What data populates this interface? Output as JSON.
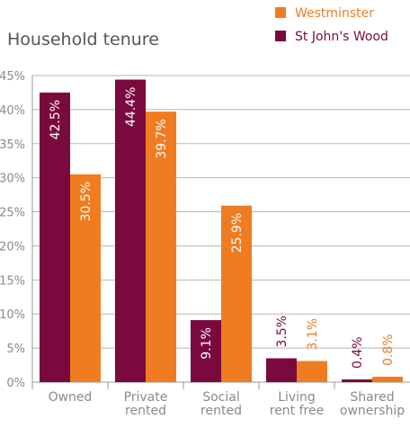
{
  "chart_data": {
    "type": "bar",
    "title": "Household tenure",
    "categories": [
      [
        "Owned"
      ],
      [
        "Private",
        "rented"
      ],
      [
        "Social",
        "rented"
      ],
      [
        "Living",
        "rent free"
      ],
      [
        "Shared",
        "ownership"
      ]
    ],
    "series": [
      {
        "name": "St John's Wood",
        "color": "#7a0a3d",
        "values": [
          42.5,
          44.4,
          9.1,
          3.5,
          0.4
        ]
      },
      {
        "name": "Westminster",
        "color": "#f07c22",
        "values": [
          30.5,
          39.7,
          25.9,
          3.1,
          0.8
        ]
      }
    ],
    "data_labels": [
      [
        "42.5%",
        "44.4%",
        "9.1%",
        "3.5%",
        "0.4%"
      ],
      [
        "30.5%",
        "39.7%",
        "25.9%",
        "3.1%",
        "0.8%"
      ]
    ],
    "yticks": [
      "0%",
      "5%",
      "10%",
      "15%",
      "20%",
      "25%",
      "30%",
      "35%",
      "40%",
      "45%"
    ],
    "ylim": [
      0,
      45
    ],
    "xlabel": "",
    "ylabel": "",
    "grid": true,
    "legend_position": "top-right"
  }
}
